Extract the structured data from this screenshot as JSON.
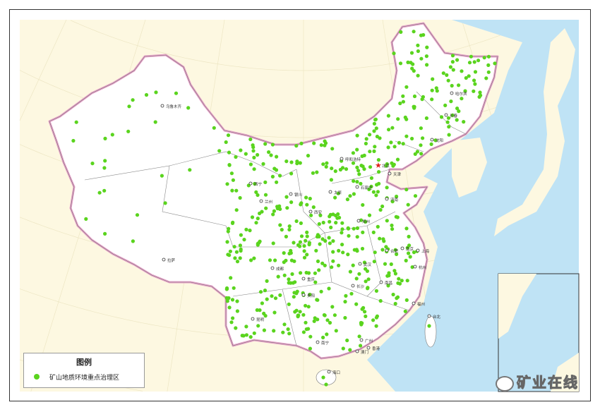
{
  "legend": {
    "title": "图例",
    "item_label": "矿山地质环境重点治理区"
  },
  "watermark": "矿业在线",
  "colors": {
    "point": "#5ad41e",
    "land": "#ffffff",
    "background": "#fdf8e1",
    "sea": "#bfe3f5",
    "border": "#e6a0c8",
    "capital": "#e0201c"
  },
  "marker_icon": "green-dot-icon",
  "capital_icon": "red-star-icon",
  "cities": [
    "北京",
    "天津",
    "石家庄",
    "太原",
    "济南",
    "郑州",
    "上海",
    "南京",
    "合肥",
    "杭州",
    "武汉",
    "长沙",
    "南昌",
    "福州",
    "台北",
    "广州",
    "香港",
    "澳门",
    "南宁",
    "海口",
    "贵阳",
    "昆明",
    "成都",
    "重庆",
    "西安",
    "兰州",
    "西宁",
    "银川",
    "呼和浩特",
    "乌鲁木齐",
    "拉萨",
    "沈阳",
    "长春",
    "哈尔滨"
  ]
}
